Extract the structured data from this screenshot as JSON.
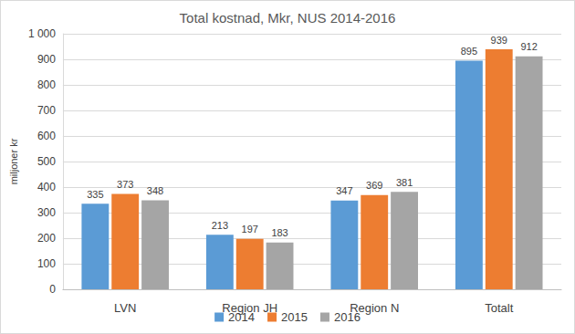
{
  "chart_data": {
    "type": "bar",
    "title": "Total kostnad, Mkr, NUS 2014-2016",
    "y_label": "miljoner kr",
    "categories": [
      "LVN",
      "Region JH",
      "Region N",
      "Totalt"
    ],
    "series": [
      {
        "name": "2014",
        "color": "#5b9bd5",
        "values": [
          335,
          213,
          347,
          895
        ]
      },
      {
        "name": "2015",
        "color": "#ed7d31",
        "values": [
          373,
          197,
          369,
          939
        ]
      },
      {
        "name": "2016",
        "color": "#a5a5a5",
        "values": [
          348,
          183,
          381,
          912
        ]
      }
    ],
    "ylim": [
      0,
      1000
    ],
    "yticks": [
      0,
      100,
      200,
      300,
      400,
      500,
      600,
      700,
      800,
      900,
      {
        "value": 1000,
        "label": "1 000"
      }
    ],
    "grid": true,
    "legend": "bottom",
    "data_labels": true
  }
}
